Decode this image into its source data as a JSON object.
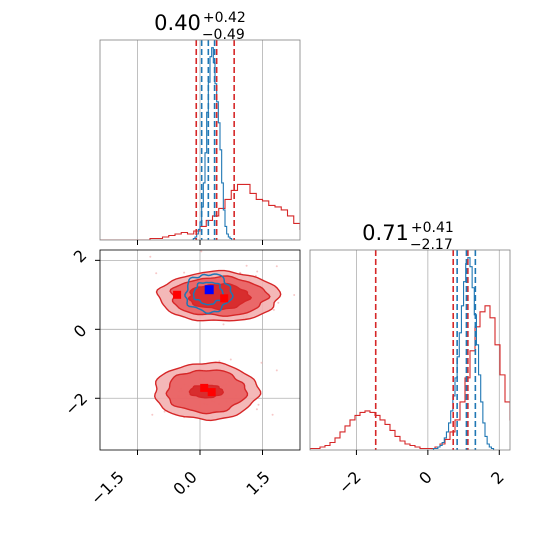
{
  "colors": {
    "red": "#d62728",
    "red_fill": "#e8595b",
    "red_light": "#f3b0b0",
    "blue": "#1f77b4",
    "grid": "#b0b0b0",
    "marker_red": "#ff0000",
    "marker_blue": "#0000ff"
  },
  "chart_data": [
    {
      "id": "hist_x",
      "type": "histogram",
      "title_value": "0.40",
      "title_plus": "+0.42",
      "title_minus": "−0.49",
      "xlim": [
        -2.4,
        2.4
      ],
      "grid": true,
      "red_series": {
        "start": -2.4,
        "width": 0.15,
        "values": [
          0,
          0,
          0,
          0,
          0,
          0,
          0,
          0,
          1,
          1,
          2,
          3,
          4,
          5,
          4,
          6,
          9,
          13,
          16,
          21,
          27,
          33,
          37,
          37,
          31,
          27,
          26,
          23,
          22,
          20,
          16,
          11,
          7,
          4,
          2,
          1,
          1,
          0,
          0,
          0,
          0,
          0
        ]
      },
      "blue_series": {
        "start": -0.2,
        "width": 0.04,
        "values": [
          0,
          1,
          2,
          4,
          7,
          12,
          22,
          38,
          58,
          85,
          105,
          122,
          128,
          118,
          104,
          92,
          78,
          60,
          38,
          20,
          9,
          4,
          2,
          1,
          0
        ]
      },
      "red_quantiles": [
        -0.09,
        0.4,
        0.82
      ],
      "blue_quantiles": [
        0.04,
        0.2,
        0.35
      ]
    },
    {
      "id": "hist_y",
      "type": "histogram",
      "title_value": "0.71",
      "title_plus": "+0.41",
      "title_minus": "−2.17",
      "xlim": [
        -3.3,
        2.3
      ],
      "xticks": [
        "−2",
        "0",
        "2"
      ],
      "grid": true,
      "red_series": {
        "start": -3.3,
        "width": 0.14,
        "values": [
          1,
          1,
          2,
          3,
          5,
          8,
          12,
          16,
          20,
          23,
          25,
          26,
          25,
          23,
          20,
          17,
          13,
          9,
          6,
          4,
          3,
          2,
          1,
          1,
          1,
          2,
          4,
          7,
          12,
          20,
          32,
          48,
          66,
          82,
          92,
          96,
          88,
          70,
          50,
          32,
          20,
          12,
          6,
          3,
          1,
          0
        ]
      },
      "blue_series": {
        "start": 0.1,
        "width": 0.06,
        "values": [
          0,
          1,
          1,
          2,
          3,
          5,
          8,
          12,
          18,
          26,
          36,
          48,
          62,
          78,
          96,
          112,
          124,
          128,
          122,
          108,
          90,
          70,
          50,
          32,
          18,
          9,
          4,
          2,
          1
        ]
      },
      "red_quantiles": [
        -1.46,
        0.71,
        1.12
      ],
      "blue_quantiles": [
        0.82,
        1.08,
        1.33
      ]
    },
    {
      "id": "contour_2d",
      "type": "contour",
      "xlim": [
        -2.4,
        2.4
      ],
      "ylim": [
        -3.5,
        2.3
      ],
      "xticks": [
        "−1.5",
        "0.0",
        "1.5"
      ],
      "yticks": [
        "2",
        "0",
        "−2"
      ],
      "grid": true,
      "red_blobs": [
        {
          "cx": 0.45,
          "cy": 0.95,
          "levels": [
            [
              1.45,
              0.72
            ],
            [
              1.15,
              0.56
            ],
            [
              0.72,
              0.36
            ]
          ]
        },
        {
          "cx": 0.15,
          "cy": -1.8,
          "levels": [
            [
              1.25,
              0.82
            ],
            [
              0.95,
              0.62
            ],
            [
              0.4,
              0.18
            ]
          ]
        }
      ],
      "blue_blob": {
        "cx": 0.2,
        "cy": 1.05,
        "levels": [
          [
            0.55,
            0.55
          ],
          [
            0.35,
            0.32
          ]
        ]
      },
      "red_markers": [
        {
          "x": -0.55,
          "y": 1.0
        },
        {
          "x": 0.58,
          "y": 0.9
        },
        {
          "x": 0.1,
          "y": -1.7
        },
        {
          "x": 0.28,
          "y": -1.82
        }
      ],
      "blue_marker": {
        "x": 0.22,
        "y": 1.15
      }
    }
  ]
}
